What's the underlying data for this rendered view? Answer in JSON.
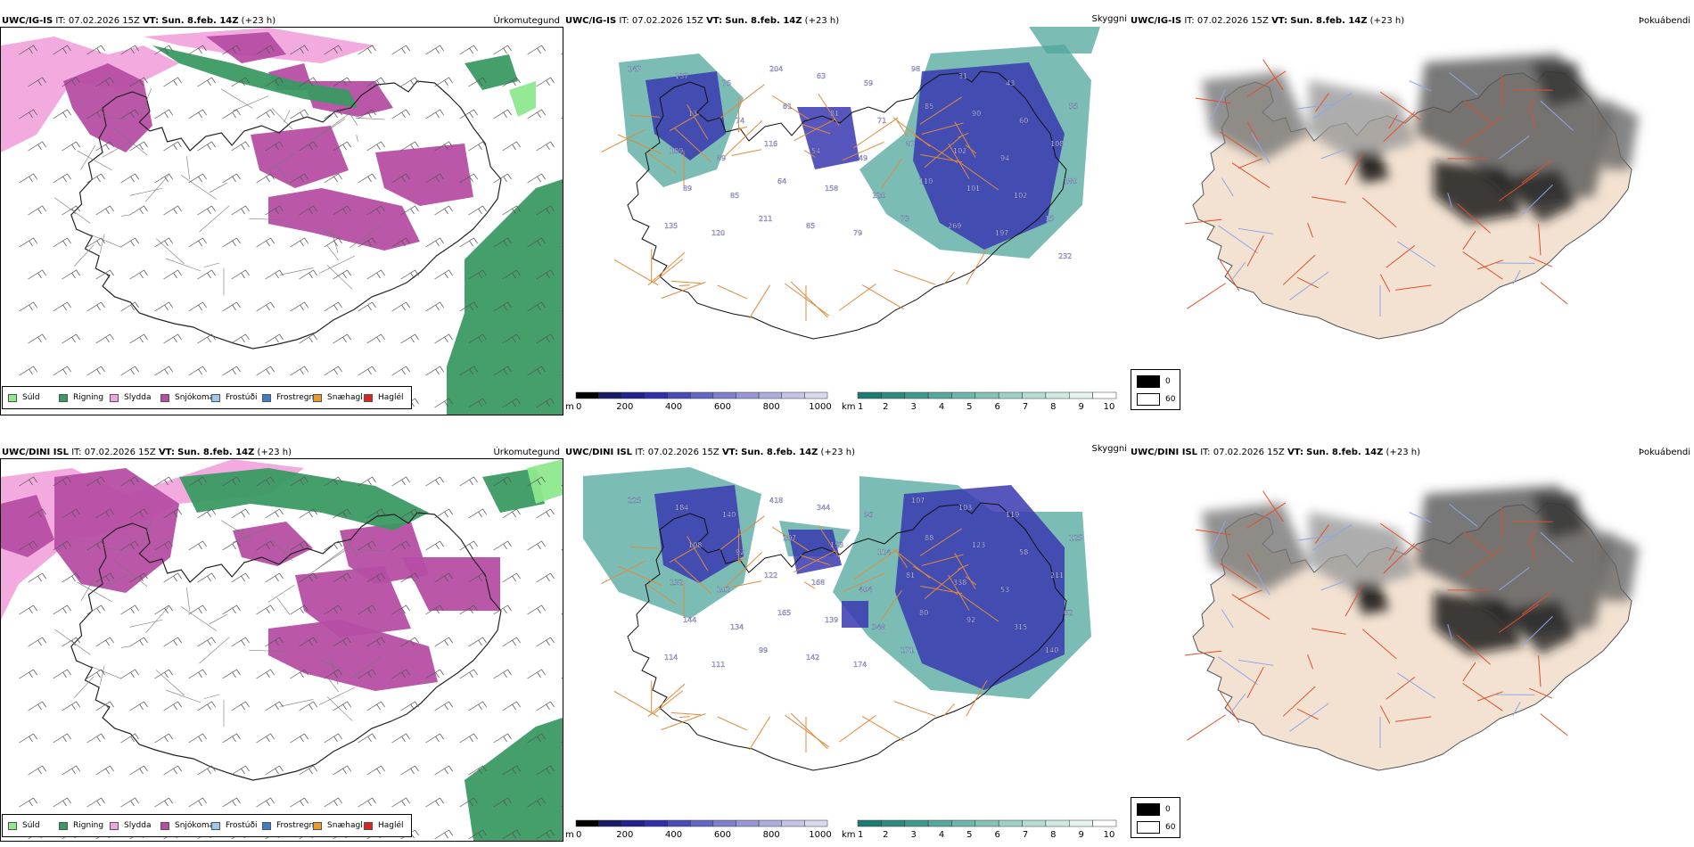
{
  "rows": [
    {
      "id": "top",
      "model": "UWC/IG-IS",
      "it_label": "IT:",
      "it_value": "07.02.2026 15Z",
      "vt_label": "VT:",
      "vt_value": "Sun. 8.feb. 14Z",
      "lead": "(+23 h)",
      "panel1_title": "Úrkomutegund",
      "panel2_title": "Skyggni",
      "panel3_title": "Þokuábendi",
      "visibility_labels": [
        "147",
        "137",
        "75",
        "204",
        "63",
        "59",
        "98",
        "31",
        "43",
        "55",
        "13",
        "74",
        "61",
        "81",
        "71",
        "85",
        "90",
        "60",
        "108",
        "109",
        "89",
        "116",
        "54",
        "49",
        "87",
        "102",
        "94",
        "180",
        "89",
        "85",
        "64",
        "158",
        "120",
        "110",
        "101",
        "102",
        "15",
        "135",
        "120",
        "211",
        "85",
        "79",
        "73",
        "269",
        "197",
        "232"
      ]
    },
    {
      "id": "bottom",
      "model": "UWC/DINI ISL",
      "it_label": "IT:",
      "it_value": "07.02.2026 15Z",
      "vt_label": "VT:",
      "vt_value": "Sun. 8.feb. 14Z",
      "lead": "(+23 h)",
      "panel1_title": "Úrkomutegund",
      "panel2_title": "Skyggni",
      "panel3_title": "Þokuábendi",
      "visibility_labels": [
        "225",
        "184",
        "140",
        "418",
        "344",
        "96",
        "107",
        "103",
        "119",
        "125",
        "108",
        "92",
        "297",
        "153",
        "114",
        "88",
        "123",
        "58",
        "211",
        "132",
        "102",
        "122",
        "168",
        "404",
        "81",
        "338",
        "53",
        "62",
        "144",
        "134",
        "165",
        "139",
        "348",
        "80",
        "92",
        "315",
        "140",
        "114",
        "111",
        "99",
        "142",
        "174",
        "171"
      ]
    }
  ],
  "precip_legend": [
    {
      "label": "Súld",
      "color": "#8ee88e"
    },
    {
      "label": "Rigning",
      "color": "#3a9a63"
    },
    {
      "label": "Slydda",
      "color": "#f2a6dd"
    },
    {
      "label": "Snjókoma",
      "color": "#b64ea4"
    },
    {
      "label": "Frostúði",
      "color": "#9cc8ee"
    },
    {
      "label": "Frostregn",
      "color": "#3c7ec8"
    },
    {
      "label": "Snæhagl",
      "color": "#e89a2a"
    },
    {
      "label": "Haglél",
      "color": "#e0241c"
    }
  ],
  "cbar_m": {
    "unit": "m",
    "ticks": [
      "0",
      "200",
      "400",
      "600",
      "800",
      "1000"
    ],
    "colors": [
      "#000000",
      "#1a1a66",
      "#22228c",
      "#3030a8",
      "#4b4bb8",
      "#6565c4",
      "#7f7fcc",
      "#9797d6",
      "#aeaede",
      "#c4c4e8",
      "#d8d8f0"
    ]
  },
  "cbar_km": {
    "unit": "km",
    "ticks": [
      "1",
      "2",
      "3",
      "4",
      "5",
      "6",
      "7",
      "8",
      "9",
      "10"
    ],
    "colors": [
      "#1f7a72",
      "#2f8a80",
      "#3f9a8e",
      "#55a89c",
      "#6cb6aa",
      "#84c3b8",
      "#9dd0c6",
      "#b6ddd4",
      "#cfeae3",
      "#e7f5f1",
      "#ffffff"
    ]
  },
  "fog_key": {
    "dark_label": "0",
    "light_label": "60"
  },
  "colors": {
    "snow": "#b64ea4",
    "sleet": "#f2a6dd",
    "rain": "#3a9a63",
    "drizzle": "#8ee88e",
    "vis_blue": "#3838b0",
    "vis_teal": "#4fa79c",
    "road_orange": "#e08a3c",
    "land_beige": "#f3e2d2"
  }
}
